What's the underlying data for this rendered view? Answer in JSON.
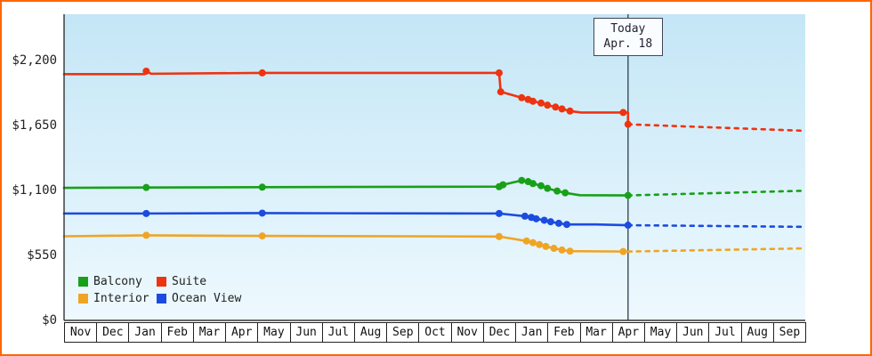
{
  "colors": {
    "frame_border": "#ff6600",
    "plot_bg_top": "#c4e6f6",
    "plot_bg_bottom": "#eef9fe",
    "axis": "#333333",
    "today_line": "#445566",
    "text": "#222222"
  },
  "chart_data": {
    "type": "line",
    "title": "",
    "xlabel": "",
    "ylabel": "",
    "grid": false,
    "legend_position": "bottom-left",
    "x_axis": {
      "unit": "month",
      "months_total": 23,
      "months": [
        "Nov",
        "Dec",
        "Jan",
        "Feb",
        "Mar",
        "Apr",
        "May",
        "Jun",
        "Jul",
        "Aug",
        "Sep",
        "Oct",
        "Nov",
        "Dec",
        "Jan",
        "Feb",
        "Mar",
        "Apr",
        "May",
        "Jun",
        "Jul",
        "Aug",
        "Sep"
      ]
    },
    "y_axis": {
      "max": 2420,
      "ticks": [
        {
          "value": 2200,
          "label": "$2,200"
        },
        {
          "value": 1650,
          "label": "$1,650"
        },
        {
          "value": 1100,
          "label": "$1,100"
        },
        {
          "value": 550,
          "label": "$550"
        },
        {
          "value": 0,
          "label": "$0"
        }
      ]
    },
    "today": {
      "x_months": 17.5,
      "label": "Today",
      "date": "Apr. 18"
    },
    "series": [
      {
        "name": "Interior",
        "color": "#f0a424",
        "points": [
          [
            0,
            712,
            0
          ],
          [
            2.55,
            720,
            1
          ],
          [
            6.15,
            715,
            1
          ],
          [
            13.5,
            710,
            1
          ],
          [
            14.35,
            672,
            1
          ],
          [
            14.55,
            658,
            1
          ],
          [
            14.75,
            642,
            1
          ],
          [
            14.95,
            626,
            1
          ],
          [
            15.2,
            610,
            1
          ],
          [
            15.45,
            596,
            1
          ],
          [
            15.7,
            586,
            1
          ],
          [
            17.35,
            583,
            1
          ],
          [
            17.5,
            583,
            0
          ]
        ],
        "forecast": [
          [
            17.5,
            583
          ],
          [
            23,
            610
          ]
        ]
      },
      {
        "name": "Ocean View",
        "color": "#1c4be0",
        "points": [
          [
            0,
            905,
            0
          ],
          [
            2.55,
            905,
            1
          ],
          [
            6.15,
            908,
            1
          ],
          [
            13.5,
            905,
            1
          ],
          [
            14.3,
            882,
            1
          ],
          [
            14.5,
            872,
            1
          ],
          [
            14.65,
            860,
            1
          ],
          [
            14.9,
            848,
            1
          ],
          [
            15.1,
            835,
            1
          ],
          [
            15.35,
            822,
            1
          ],
          [
            15.6,
            812,
            1
          ],
          [
            16.5,
            812,
            0
          ],
          [
            17.5,
            806,
            1
          ]
        ],
        "forecast": [
          [
            17.5,
            806
          ],
          [
            23,
            792
          ]
        ]
      },
      {
        "name": "Balcony",
        "color": "#18a018",
        "points": [
          [
            0,
            1122,
            0
          ],
          [
            2.55,
            1125,
            1
          ],
          [
            6.15,
            1128,
            1
          ],
          [
            13.5,
            1132,
            1
          ],
          [
            13.62,
            1148,
            1
          ],
          [
            14.2,
            1185,
            1
          ],
          [
            14.4,
            1175,
            1
          ],
          [
            14.55,
            1158,
            1
          ],
          [
            14.8,
            1140,
            1
          ],
          [
            15.0,
            1118,
            1
          ],
          [
            15.3,
            1095,
            1
          ],
          [
            15.55,
            1080,
            1
          ],
          [
            16.0,
            1060,
            0
          ],
          [
            17.5,
            1058,
            1
          ]
        ],
        "forecast": [
          [
            17.5,
            1058
          ],
          [
            23,
            1098
          ]
        ]
      },
      {
        "name": "Suite",
        "color": "#ee3311",
        "points": [
          [
            0,
            2085,
            0
          ],
          [
            2.5,
            2085,
            0
          ],
          [
            2.55,
            2110,
            1
          ],
          [
            2.7,
            2088,
            0
          ],
          [
            6.15,
            2095,
            1
          ],
          [
            13.5,
            2095,
            1
          ],
          [
            13.55,
            1935,
            1
          ],
          [
            14.2,
            1885,
            1
          ],
          [
            14.4,
            1870,
            1
          ],
          [
            14.55,
            1855,
            1
          ],
          [
            14.8,
            1840,
            1
          ],
          [
            15.0,
            1822,
            1
          ],
          [
            15.25,
            1806,
            1
          ],
          [
            15.45,
            1790,
            1
          ],
          [
            15.7,
            1772,
            1
          ],
          [
            16.05,
            1760,
            0
          ],
          [
            17.35,
            1760,
            1
          ],
          [
            17.5,
            1760,
            0
          ],
          [
            17.5,
            1660,
            1
          ]
        ],
        "forecast": [
          [
            17.5,
            1660
          ],
          [
            23,
            1605
          ]
        ]
      }
    ],
    "legend": {
      "items": [
        {
          "label": "Balcony",
          "color": "#18a018"
        },
        {
          "label": "Suite",
          "color": "#ee3311"
        },
        {
          "label": "Interior",
          "color": "#f0a424"
        },
        {
          "label": "Ocean View",
          "color": "#1c4be0"
        }
      ]
    }
  }
}
